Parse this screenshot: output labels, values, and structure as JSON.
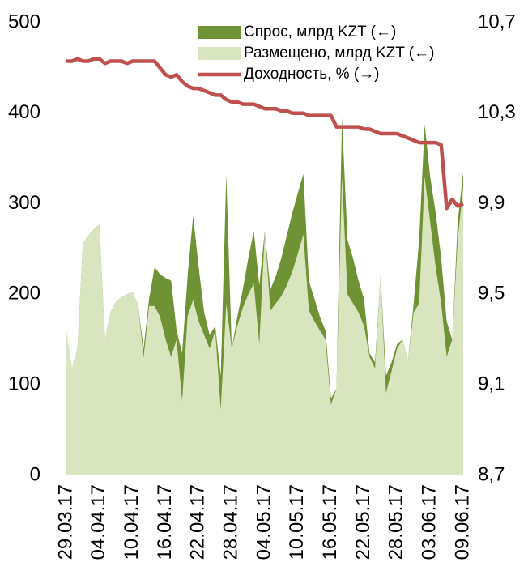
{
  "chart_data": {
    "type": "area-line",
    "categories": [
      "29.03.17",
      null,
      null,
      null,
      null,
      null,
      "04.04.17",
      null,
      null,
      null,
      null,
      null,
      "10.04.17",
      null,
      null,
      null,
      null,
      null,
      "16.04.17",
      null,
      null,
      null,
      null,
      null,
      "22.04.17",
      null,
      null,
      null,
      null,
      null,
      "28.04.17",
      null,
      null,
      null,
      null,
      null,
      "04.05.17",
      null,
      null,
      null,
      null,
      null,
      "10.05.17",
      null,
      null,
      null,
      null,
      null,
      "16.05.17",
      null,
      null,
      null,
      null,
      null,
      "22.05.17",
      null,
      null,
      null,
      null,
      null,
      "28.05.17",
      null,
      null,
      null,
      null,
      null,
      "03.06.17",
      null,
      null,
      null,
      null,
      null,
      "09.06.17"
    ],
    "series": [
      {
        "name": "Спрос, млрд KZT (←)",
        "color": "#6f9234",
        "kind": "area",
        "values": [
          158,
          118,
          140,
          257,
          265,
          272,
          277,
          150,
          180,
          192,
          197,
          200,
          203,
          188,
          140,
          195,
          230,
          222,
          218,
          215,
          160,
          135,
          220,
          287,
          230,
          180,
          155,
          165,
          110,
          332,
          140,
          175,
          205,
          240,
          270,
          210,
          270,
          205,
          220,
          240,
          265,
          290,
          312,
          333,
          215,
          195,
          175,
          160,
          85,
          96,
          395,
          260,
          240,
          215,
          195,
          135,
          125,
          221,
          110,
          125,
          145,
          150,
          127,
          190,
          260,
          388,
          330,
          290,
          240,
          170,
          150,
          280,
          335
        ]
      },
      {
        "name": "Размещено, млрд KZT (←)",
        "color": "#d8e5bf",
        "kind": "area",
        "values": [
          158,
          118,
          140,
          257,
          265,
          272,
          277,
          150,
          180,
          192,
          197,
          200,
          203,
          188,
          130,
          187,
          187,
          175,
          150,
          131,
          150,
          82,
          176,
          194,
          170,
          155,
          140,
          160,
          73,
          190,
          140,
          165,
          185,
          200,
          212,
          145,
          270,
          182,
          190,
          198,
          210,
          225,
          245,
          266,
          182,
          170,
          160,
          150,
          78,
          96,
          330,
          200,
          190,
          180,
          165,
          131,
          118,
          221,
          91,
          115,
          140,
          150,
          127,
          180,
          190,
          330,
          280,
          230,
          190,
          131,
          150,
          260,
          319
        ]
      },
      {
        "name": "Доходность, % (→)",
        "color": "#c0504d",
        "kind": "line",
        "axis": "y2",
        "values": [
          10.53,
          10.53,
          10.54,
          10.53,
          10.53,
          10.54,
          10.54,
          10.52,
          10.53,
          10.53,
          10.53,
          10.52,
          10.53,
          10.53,
          10.53,
          10.53,
          10.53,
          10.5,
          10.47,
          10.46,
          10.47,
          10.44,
          10.42,
          10.41,
          10.41,
          10.4,
          10.39,
          10.38,
          10.38,
          10.36,
          10.35,
          10.35,
          10.34,
          10.34,
          10.34,
          10.33,
          10.32,
          10.32,
          10.32,
          10.31,
          10.31,
          10.3,
          10.3,
          10.3,
          10.29,
          10.29,
          10.29,
          10.29,
          10.29,
          10.24,
          10.24,
          10.24,
          10.24,
          10.24,
          10.23,
          10.23,
          10.22,
          10.21,
          10.21,
          10.21,
          10.21,
          10.2,
          10.19,
          10.18,
          10.17,
          10.17,
          10.17,
          10.17,
          10.16,
          9.88,
          9.92,
          9.89,
          9.9
        ]
      }
    ],
    "ylim": [
      0,
      500
    ],
    "yticks": [
      0,
      100,
      200,
      300,
      400,
      500
    ],
    "y2lim": [
      8.7,
      10.7
    ],
    "y2ticks": [
      {
        "value": 8.7,
        "label": "8,7"
      },
      {
        "value": 9.1,
        "label": "9,1"
      },
      {
        "value": 9.5,
        "label": "9,5"
      },
      {
        "value": 9.9,
        "label": "9,9"
      },
      {
        "value": 10.3,
        "label": "10,3"
      },
      {
        "value": 10.7,
        "label": "10,7"
      }
    ],
    "legend": "upper right"
  }
}
